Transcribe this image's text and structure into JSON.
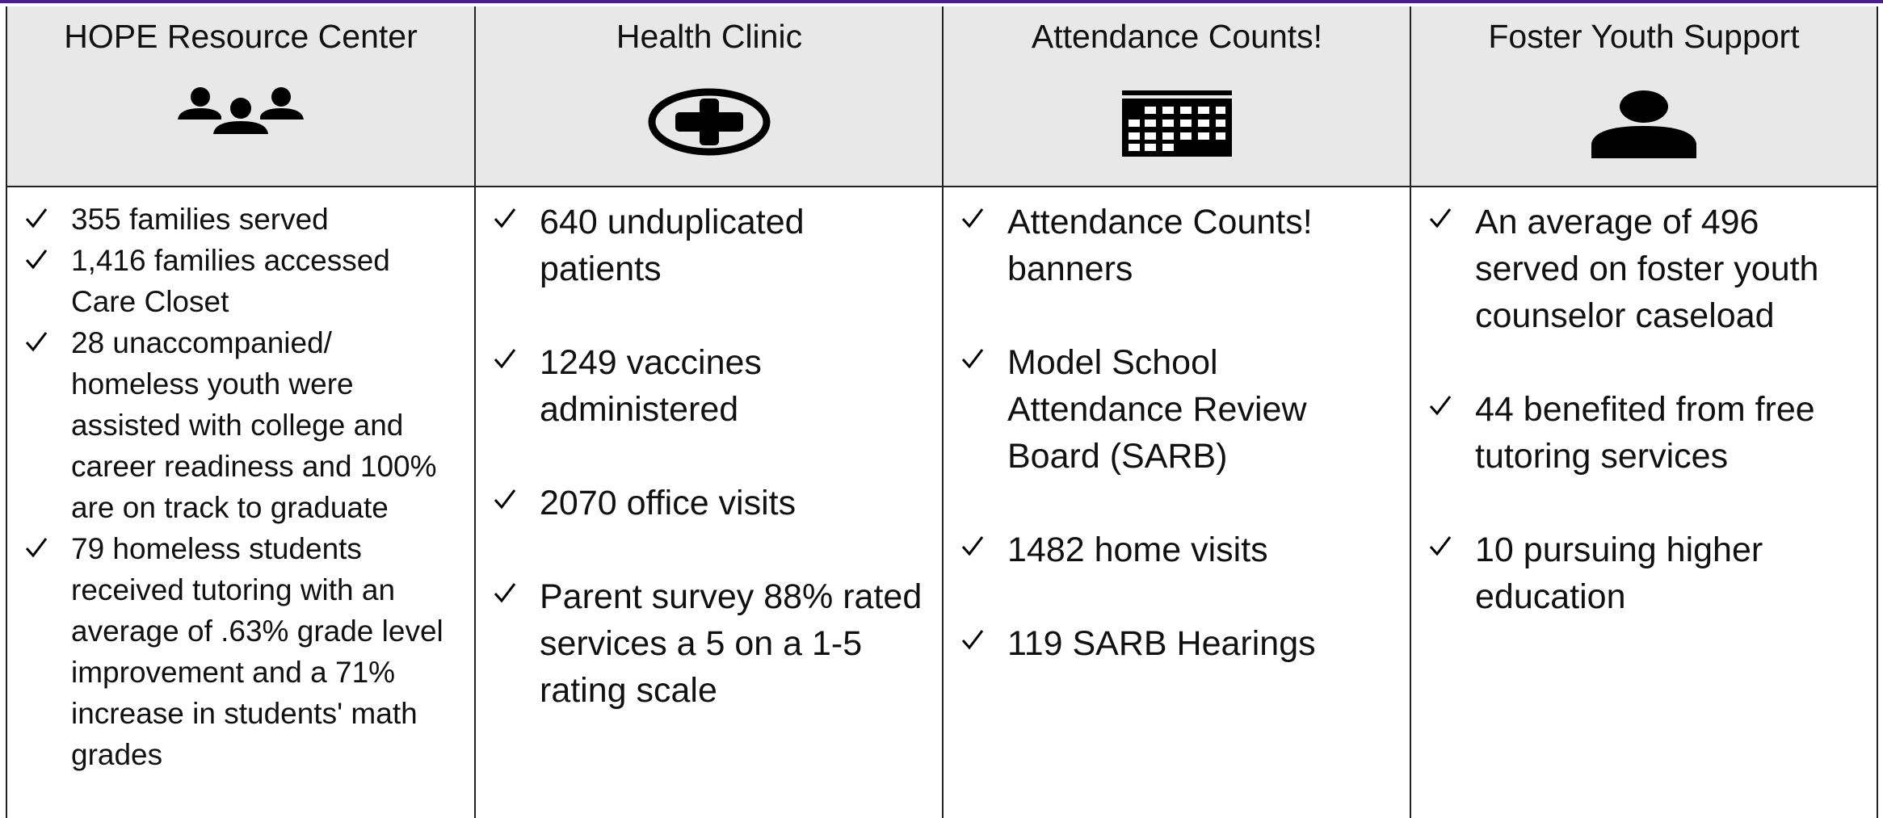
{
  "columns": [
    {
      "title": "HOPE Resource Center",
      "items": [
        "355 families served",
        "1,416 families accessed Care Closet",
        "28 unaccompanied/ homeless youth were assisted with college and career readiness and 100% are on track to graduate",
        "79 homeless students received tutoring with an average of .63% grade level improvement and a 71% increase in students' math grades"
      ]
    },
    {
      "title": "Health Clinic",
      "items": [
        "640 unduplicated patients",
        "1249 vaccines administered",
        "2070 office visits",
        "Parent survey 88% rated services a 5 on a 1-5 rating scale"
      ]
    },
    {
      "title": "Attendance Counts!",
      "items": [
        "Attendance Counts!  banners",
        "Model School Attendance Review Board (SARB)",
        "1482 home visits",
        "119 SARB Hearings"
      ]
    },
    {
      "title": "Foster Youth Support",
      "items": [
        "An average of 496 served on foster youth counselor caseload",
        "44 benefited from free tutoring services",
        "10 pursuing higher education"
      ]
    }
  ]
}
